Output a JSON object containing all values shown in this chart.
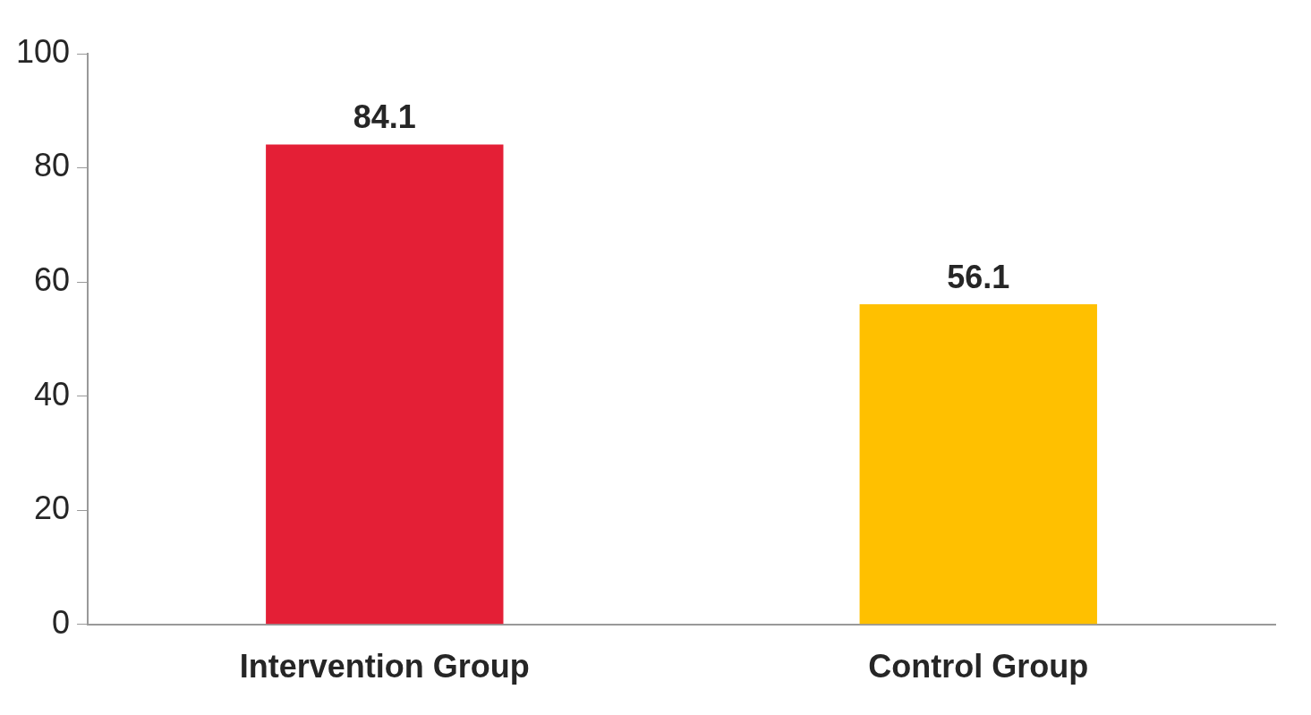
{
  "chart_data": {
    "type": "bar",
    "categories": [
      "Intervention Group",
      "Control Group"
    ],
    "values": [
      84.1,
      56.1
    ],
    "colors": [
      "#e41f36",
      "#ffc000"
    ],
    "ylim": [
      0,
      100
    ],
    "yticks": [
      0,
      20,
      40,
      60,
      80,
      100
    ],
    "data_labels": true,
    "grid": false,
    "legend": false
  }
}
